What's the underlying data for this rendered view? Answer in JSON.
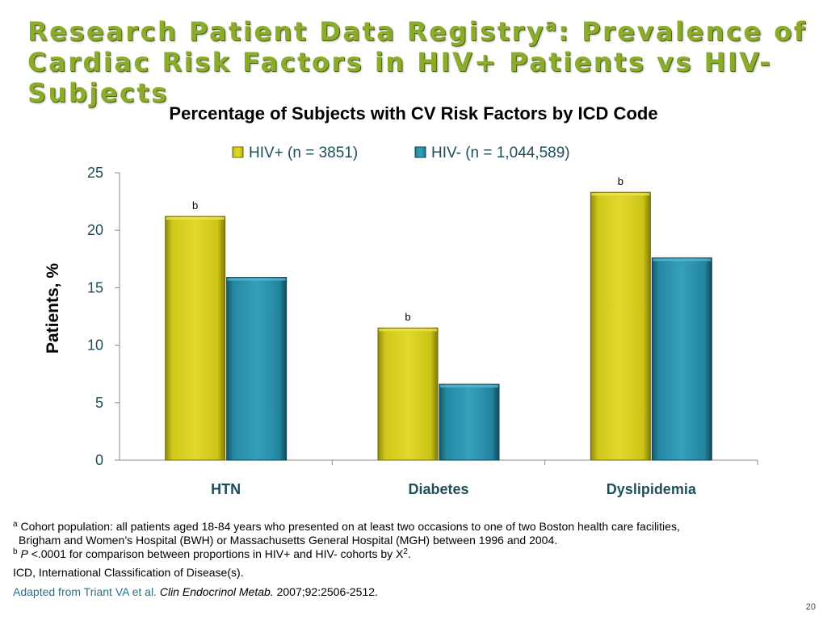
{
  "slide": {
    "title_main": "Research Patient Data Registry",
    "title_sup": "a",
    "title_rest": ": Prevalence of Cardiac Risk Factors in HIV+ Patients vs HIV- Subjects",
    "page_number": "20"
  },
  "colors": {
    "title": "#8bab2a",
    "hiv_pos": "#d6ce1e",
    "hiv_neg": "#2b95b0",
    "axis_text": "#1f4e5a"
  },
  "chart_data": {
    "type": "bar",
    "title": "Percentage of Subjects with CV Risk Factors by ICD Code",
    "ylabel": "Patients, %",
    "xlabel": "",
    "categories": [
      "HTN",
      "Diabetes",
      "Dyslipidemia"
    ],
    "series": [
      {
        "name": "HIV+ (n = 3851)",
        "values": [
          21.2,
          11.5,
          23.3
        ],
        "annotations": [
          "b",
          "b",
          "b"
        ]
      },
      {
        "name": "HIV- (n = 1,044,589)",
        "values": [
          15.9,
          6.6,
          17.6
        ],
        "annotations": [
          "",
          "",
          ""
        ]
      }
    ],
    "ylim": [
      0,
      25
    ],
    "yticks": [
      0,
      5,
      10,
      15,
      20,
      25
    ],
    "legend": "top",
    "grid": false
  },
  "footnotes": {
    "a_marker": "a",
    "a_line1": "Cohort population: all patients aged 18-84 years who presented on at least two occasions to one of two Boston health care facilities,",
    "a_line2": "Brigham and Women’s Hospital (BWH) or Massachusetts General Hospital (MGH) between 1996 and 2004.",
    "b_marker": "b",
    "b_p": "P",
    "b_text": " <.0001 for comparison between proportions in HIV+ and HIV- cohorts by X",
    "b_sup": "2",
    "b_end": ".",
    "icd": "ICD, International Classification of Disease(s).",
    "citation_source": "Adapted from Triant VA et al.",
    "citation_journal": "Clin Endocrinol Metab.",
    "citation_ref": " 2007;92:2506-2512."
  }
}
